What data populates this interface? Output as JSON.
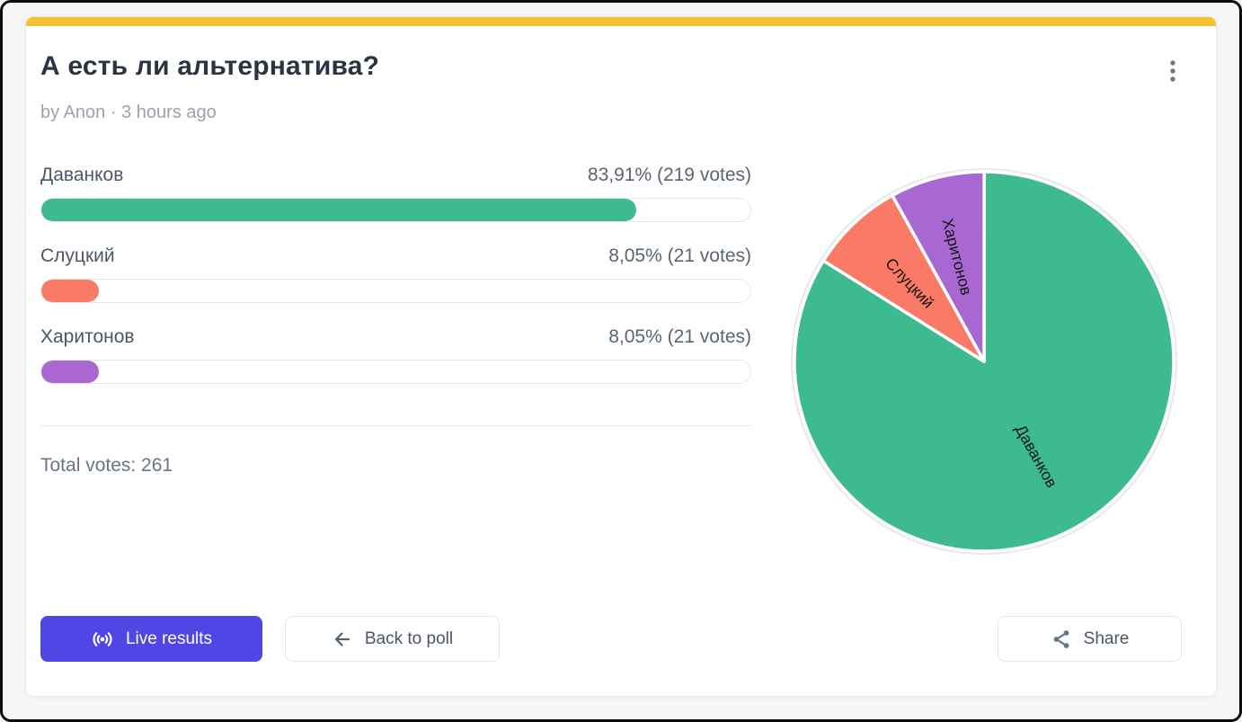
{
  "colors": {
    "accent_bar": "#f9c12f",
    "primary_button": "#4f46e5",
    "option_green": "#3dba8e",
    "option_red": "#fa7a68",
    "option_purple": "#a967d1"
  },
  "header": {
    "title": "А есть ли альтернатива?",
    "byline": "by Anon · 3 hours ago"
  },
  "poll": {
    "options": [
      {
        "label": "Даванков",
        "result_text": "83,91% (219 votes)",
        "percent": 83.91,
        "color": "#3dba8e"
      },
      {
        "label": "Слуцкий",
        "result_text": "8,05% (21 votes)",
        "percent": 8.05,
        "color": "#fa7a68"
      },
      {
        "label": "Харитонов",
        "result_text": "8,05% (21 votes)",
        "percent": 8.05,
        "color": "#a967d1"
      }
    ],
    "total_votes_label": "Total votes: 261"
  },
  "buttons": {
    "live_results": "Live results",
    "back_to_poll": "Back to poll",
    "share": "Share"
  },
  "icons": {
    "menu": "kebab-menu-icon",
    "live": "broadcast-icon",
    "back": "arrow-left-icon",
    "share": "share-nodes-icon"
  },
  "chart_data": {
    "type": "pie",
    "title": "",
    "categories": [
      "Даванков",
      "Слуцкий",
      "Харитонов"
    ],
    "values": [
      219,
      21,
      21
    ],
    "percentages": [
      83.91,
      8.05,
      8.05
    ],
    "colors": [
      "#3dba8e",
      "#fa7a68",
      "#a967d1"
    ],
    "start_angle_deg": 0,
    "direction": "clockwise",
    "labels_inside": true,
    "legend_position": "none"
  }
}
